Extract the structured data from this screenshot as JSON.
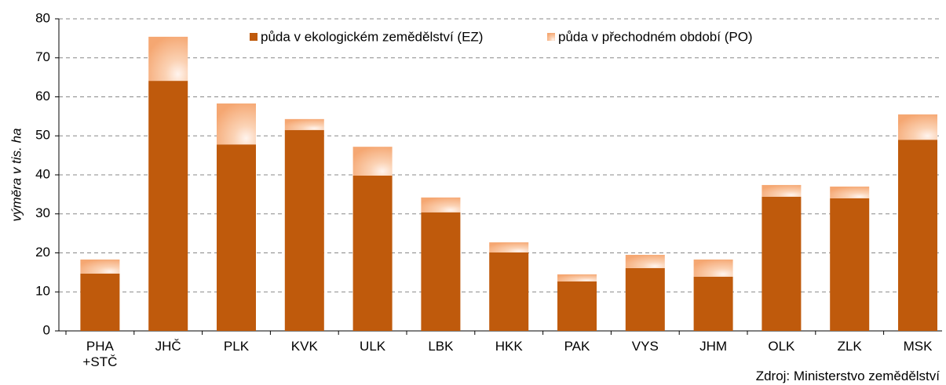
{
  "chart_data": {
    "type": "stacked-bar",
    "y_label": "výměra  v tis. ha",
    "source": "Zdroj: Ministerstvo zemědělství",
    "categories": [
      "PHA\n+STČ",
      "JHČ",
      "PLK",
      "KVK",
      "ULK",
      "LBK",
      "HKK",
      "PAK",
      "VYS",
      "JHM",
      "OLK",
      "ZLK",
      "MSK"
    ],
    "series": [
      {
        "name": "půda v ekologickém zemědělství (EZ)",
        "color": "#bf5a0c",
        "values": [
          14.7,
          64.1,
          47.8,
          51.5,
          39.8,
          30.4,
          20.1,
          12.7,
          16.1,
          13.9,
          34.4,
          34.0,
          49.0
        ]
      },
      {
        "name": "půda v přechodném období (PO)",
        "color": "#f7b98a",
        "values": [
          3.6,
          11.3,
          10.5,
          2.8,
          7.4,
          3.8,
          2.6,
          1.8,
          3.4,
          4.4,
          3.0,
          3.0,
          6.5
        ]
      }
    ],
    "ylim": [
      0,
      80
    ],
    "yticks": [
      0,
      10,
      20,
      30,
      40,
      50,
      60,
      70,
      80
    ],
    "grid": true,
    "legend": "top"
  }
}
